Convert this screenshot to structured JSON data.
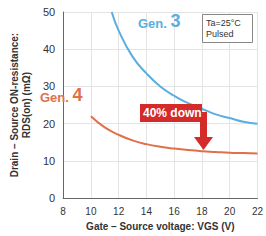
{
  "chart_data": {
    "type": "line",
    "x_label": "Gate – Source voltage: VGS (V)",
    "y_label": "Drain – Source ON-resistance:\nRDS(on) (mΩ)",
    "xlim": [
      8,
      22
    ],
    "xticks": [
      8,
      10,
      12,
      14,
      16,
      18,
      20,
      22
    ],
    "ylim": [
      0,
      50
    ],
    "yticks": [
      0,
      10,
      20,
      30,
      40,
      50
    ],
    "grid": true,
    "series": [
      {
        "name": "Gen. 3",
        "color": "#5aaee0",
        "x": [
          11.5,
          12,
          13,
          14,
          15,
          16,
          17,
          18,
          19,
          20,
          21,
          22
        ],
        "values": [
          50,
          45,
          38,
          33.5,
          30,
          27.5,
          25.5,
          24,
          22.5,
          21.5,
          20.5,
          20
        ]
      },
      {
        "name": "Gen. 4",
        "color": "#e0704a",
        "x": [
          10,
          11,
          12,
          13,
          14,
          15,
          16,
          17,
          18,
          19,
          20,
          21,
          22
        ],
        "values": [
          22,
          19,
          17,
          15.5,
          14.5,
          13.8,
          13.3,
          12.9,
          12.6,
          12.4,
          12.2,
          12.1,
          12
        ]
      }
    ],
    "annotations": [
      {
        "text": "Ta=25°C\nPulsed"
      },
      {
        "text": "40%\ndown",
        "color": "#d42a2a"
      }
    ]
  }
}
